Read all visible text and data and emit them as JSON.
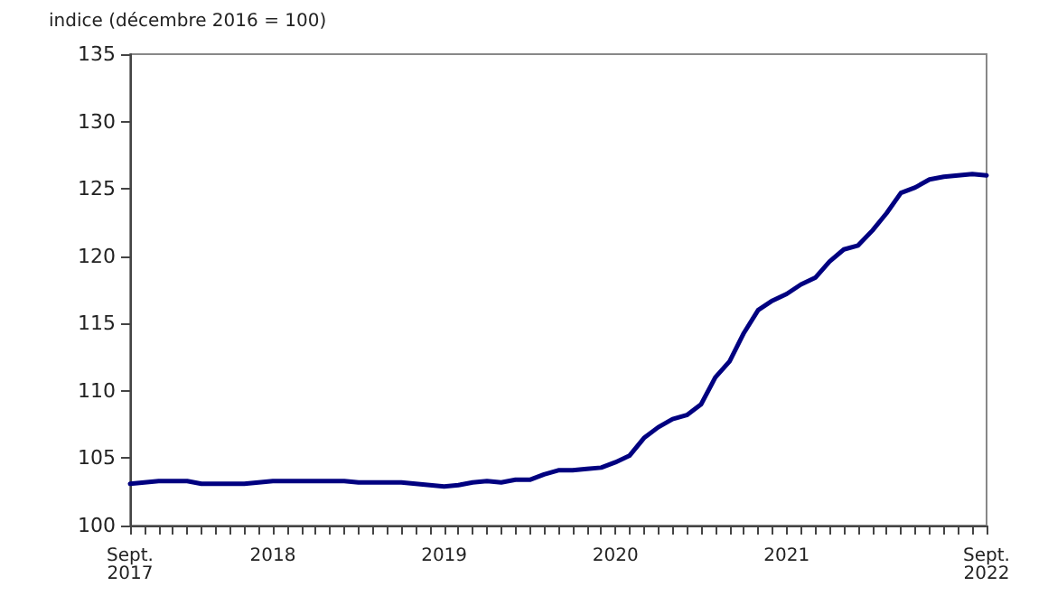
{
  "chart_data": {
    "type": "line",
    "ylabel": "indice (décembre 2016 = 100)",
    "categories": [
      "Sept.\n2017",
      null,
      null,
      null,
      null,
      null,
      null,
      null,
      null,
      null,
      "2018",
      null,
      null,
      null,
      null,
      null,
      null,
      null,
      null,
      null,
      null,
      null,
      "2019",
      null,
      null,
      null,
      null,
      null,
      null,
      null,
      null,
      null,
      null,
      null,
      "2020",
      null,
      null,
      null,
      null,
      null,
      null,
      null,
      null,
      null,
      null,
      null,
      "2021",
      null,
      null,
      null,
      null,
      null,
      null,
      null,
      null,
      null,
      null,
      null,
      null,
      null,
      "Sept.\n2022"
    ],
    "series": [
      {
        "color": "#000080",
        "values": [
          103.1,
          103.2,
          103.3,
          103.3,
          103.3,
          103.1,
          103.1,
          103.1,
          103.1,
          103.2,
          103.3,
          103.3,
          103.3,
          103.3,
          103.3,
          103.3,
          103.2,
          103.2,
          103.2,
          103.2,
          103.1,
          103.0,
          102.9,
          103.0,
          103.2,
          103.3,
          103.2,
          103.4,
          103.4,
          103.8,
          104.1,
          104.1,
          104.2,
          104.3,
          104.7,
          105.2,
          106.5,
          107.3,
          107.9,
          108.2,
          109.0,
          111.0,
          112.2,
          114.3,
          116.0,
          116.7,
          117.2,
          117.9,
          118.4,
          119.6,
          120.5,
          120.8,
          121.9,
          123.2,
          124.7,
          125.1,
          125.7,
          125.9,
          126.0,
          126.1,
          126.0
        ]
      }
    ],
    "ylim": [
      100,
      135
    ],
    "yticks": [
      100,
      105,
      110,
      115,
      120,
      125,
      130,
      135
    ],
    "grid": false,
    "marker": "none",
    "line_style": "solid"
  }
}
